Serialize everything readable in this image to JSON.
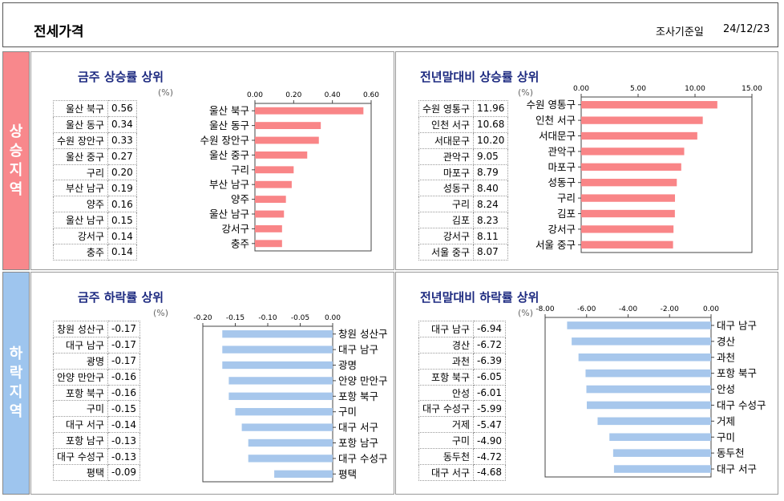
{
  "header": {
    "title": "전세가격",
    "date_label": "조사기준일",
    "date_value": "24/12/23"
  },
  "sidebar": {
    "rise": [
      "상",
      "승",
      "지",
      "역"
    ],
    "fall": [
      "하",
      "락",
      "지",
      "역"
    ]
  },
  "unit": "(%)",
  "panels": {
    "weekly_up": {
      "title": "금주 상승률 상위"
    },
    "ytd_up": {
      "title": "전년말대비 상승률 상위"
    },
    "weekly_down": {
      "title": "금주 하락률 상위"
    },
    "ytd_down": {
      "title": "전년말대비 하락률 상위"
    }
  },
  "chart_data": [
    {
      "type": "bar",
      "id": "weekly_up",
      "title": "금주 상승률 상위",
      "orientation": "horizontal",
      "categories": [
        "울산 북구",
        "울산 동구",
        "수원 장안구",
        "울산 중구",
        "구리",
        "부산 남구",
        "양주",
        "울산 남구",
        "강서구",
        "충주"
      ],
      "values": [
        0.56,
        0.34,
        0.33,
        0.27,
        0.2,
        0.19,
        0.16,
        0.15,
        0.14,
        0.14
      ],
      "value_labels": [
        "0.56",
        "0.34",
        "0.33",
        "0.27",
        "0.20",
        "0.19",
        "0.16",
        "0.15",
        "0.14",
        "0.14"
      ],
      "xlim": [
        0,
        0.6
      ],
      "xticks": [
        "0.00",
        "0.20",
        "0.40",
        "0.60"
      ],
      "color": "#f98587"
    },
    {
      "type": "bar",
      "id": "ytd_up",
      "title": "전년말대비 상승률 상위",
      "orientation": "horizontal",
      "categories": [
        "수원 영통구",
        "인천 서구",
        "서대문구",
        "관악구",
        "마포구",
        "성동구",
        "구리",
        "김포",
        "강서구",
        "서울 중구"
      ],
      "values": [
        11.96,
        10.68,
        10.2,
        9.05,
        8.79,
        8.4,
        8.24,
        8.23,
        8.11,
        8.07
      ],
      "value_labels": [
        "11.96",
        "10.68",
        "10.20",
        "9.05",
        "8.79",
        "8.40",
        "8.24",
        "8.23",
        "8.11",
        "8.07"
      ],
      "xlim": [
        0,
        15
      ],
      "xticks": [
        "0.00",
        "5.00",
        "10.00",
        "15.00"
      ],
      "color": "#f98587"
    },
    {
      "type": "bar",
      "id": "weekly_down",
      "title": "금주 하락률 상위",
      "orientation": "horizontal",
      "categories": [
        "창원 성산구",
        "대구 남구",
        "광명",
        "안양 만안구",
        "포항 북구",
        "구미",
        "대구 서구",
        "포항 남구",
        "대구 수성구",
        "평택"
      ],
      "values": [
        -0.17,
        -0.17,
        -0.17,
        -0.16,
        -0.16,
        -0.15,
        -0.14,
        -0.13,
        -0.13,
        -0.09
      ],
      "value_labels": [
        "-0.17",
        "-0.17",
        "-0.17",
        "-0.16",
        "-0.16",
        "-0.15",
        "-0.14",
        "-0.13",
        "-0.13",
        "-0.09"
      ],
      "xlim": [
        -0.2,
        0
      ],
      "xticks": [
        "-0.20",
        "-0.15",
        "-0.10",
        "-0.05",
        "0.00"
      ],
      "color": "#a7c7ec"
    },
    {
      "type": "bar",
      "id": "ytd_down",
      "title": "전년말대비 하락률 상위",
      "orientation": "horizontal",
      "categories": [
        "대구 남구",
        "경산",
        "과천",
        "포항 북구",
        "안성",
        "대구 수성구",
        "거제",
        "구미",
        "동두천",
        "대구 서구"
      ],
      "values": [
        -6.94,
        -6.72,
        -6.39,
        -6.05,
        -6.01,
        -5.99,
        -5.47,
        -4.9,
        -4.72,
        -4.68
      ],
      "value_labels": [
        "-6.94",
        "-6.72",
        "-6.39",
        "-6.05",
        "-6.01",
        "-5.99",
        "-5.47",
        "-4.90",
        "-4.72",
        "-4.68"
      ],
      "xlim": [
        -8,
        0
      ],
      "xticks": [
        "-8.00",
        "-6.00",
        "-4.00",
        "-2.00",
        "0.00"
      ],
      "color": "#a7c7ec"
    }
  ]
}
